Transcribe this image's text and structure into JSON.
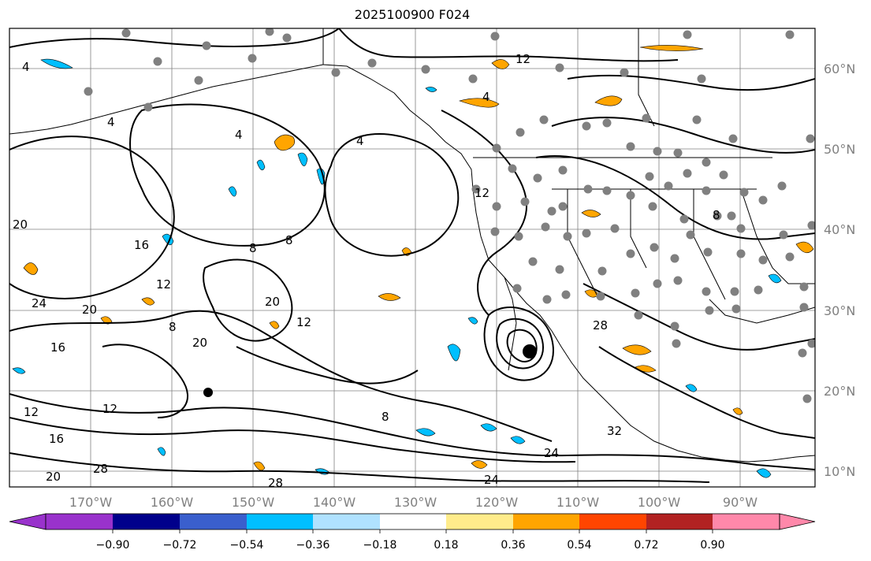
{
  "title": "2025100900 F024",
  "map": {
    "lat_labels": [
      "60°N",
      "50°N",
      "40°N",
      "30°N",
      "20°N",
      "10°N"
    ],
    "lon_labels": [
      "170°W",
      "160°W",
      "150°W",
      "140°W",
      "130°W",
      "120°W",
      "110°W",
      "100°W",
      "90°W"
    ],
    "contour_labels": [
      "4",
      "4",
      "4",
      "4",
      "4",
      "8",
      "8",
      "8",
      "8",
      "8",
      "12",
      "12",
      "12",
      "12",
      "12",
      "12",
      "16",
      "16",
      "16",
      "20",
      "20",
      "20",
      "20",
      "20",
      "24",
      "24",
      "24",
      "28",
      "28",
      "28",
      "32"
    ],
    "colors": {
      "contour": "#000000",
      "grid": "#808080",
      "coast": "#000000",
      "station_dots": "#808080"
    }
  },
  "colorbar": {
    "tick_labels": [
      "−0.90",
      "−0.72",
      "−0.54",
      "−0.36",
      "−0.18",
      "0.18",
      "0.36",
      "0.54",
      "0.72",
      "0.90"
    ],
    "colors": [
      "#9932cc",
      "#00008b",
      "#3a5fcd",
      "#00bfff",
      "#b0e2ff",
      "#ffffff",
      "#ffec8b",
      "#ffa500",
      "#ff4500",
      "#b22222",
      "#ff88aa"
    ],
    "extend": "both"
  }
}
